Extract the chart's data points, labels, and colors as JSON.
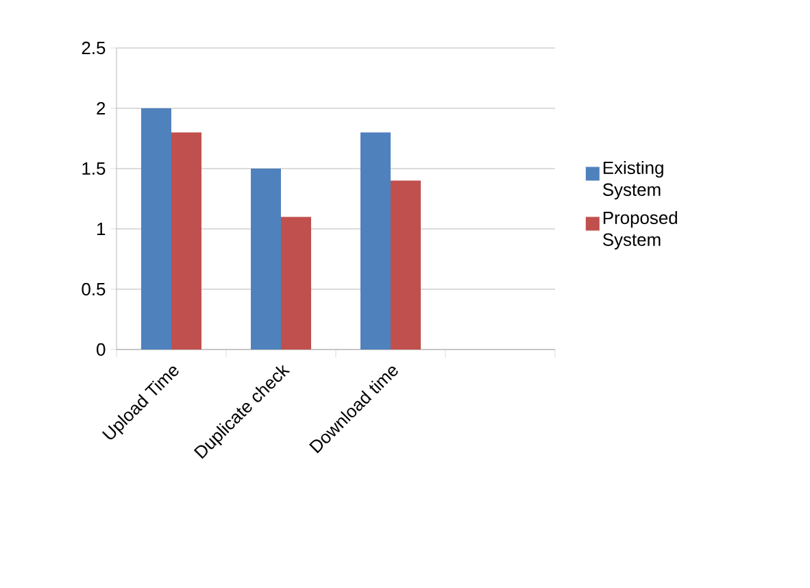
{
  "chart_data": {
    "type": "bar",
    "categories": [
      "Upload Time",
      "Duplicate check",
      "Download time",
      null
    ],
    "series": [
      {
        "name": "Existing System",
        "color": "#4f81bd",
        "values": [
          2,
          1.5,
          1.8,
          null
        ]
      },
      {
        "name": "Proposed System",
        "color": "#c0504d",
        "values": [
          1.8,
          1.1,
          1.4,
          null
        ]
      }
    ],
    "ylim": [
      0,
      2.5
    ],
    "yticks": [
      0,
      0.5,
      1,
      1.5,
      2,
      2.5
    ],
    "grid": "y",
    "legend": "right"
  }
}
